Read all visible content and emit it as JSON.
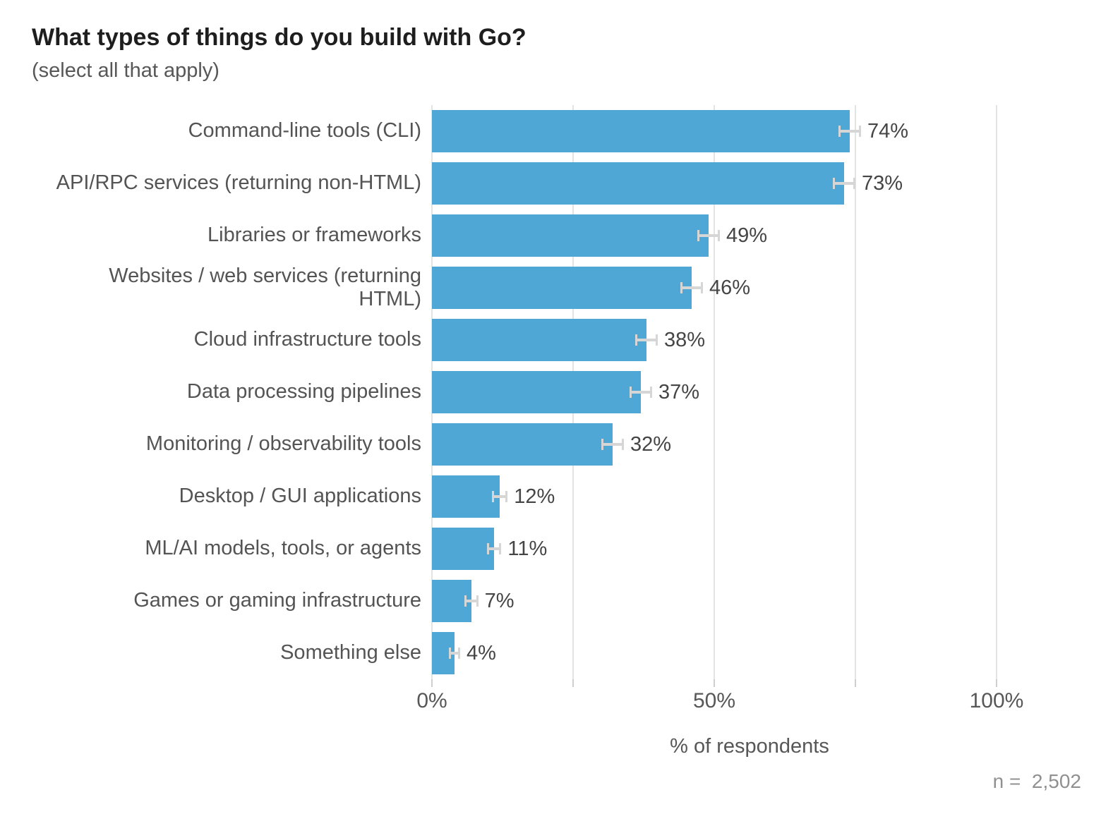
{
  "title": "What types of things do you build with Go?",
  "subtitle": "(select all that apply)",
  "footnote": "n =  2,502",
  "colors": {
    "bar": "#4fa7d5",
    "gridline": "#e4e4e4",
    "error_bar": "#d6d6d6",
    "title_text": "#1e1e1e",
    "label_text": "#545454",
    "footnote_text": "#909090"
  },
  "chart_data": {
    "type": "bar",
    "orientation": "horizontal",
    "title": "What types of things do you build with Go?",
    "subtitle": "(select all that apply)",
    "xlabel": "% of respondents",
    "ylabel": "",
    "xlim": [
      0,
      100
    ],
    "grid": "vertical",
    "sample_size": "2,502",
    "categories": [
      "Command-line tools (CLI)",
      "API/RPC services (returning non-HTML)",
      "Libraries or frameworks",
      "Websites / web services (returning\nHTML)",
      "Cloud infrastructure tools",
      "Data processing pipelines",
      "Monitoring / observability tools",
      "Desktop / GUI applications",
      "ML/AI models, tools, or agents",
      "Games or gaming infrastructure",
      "Something else"
    ],
    "values": [
      74,
      73,
      49,
      46,
      38,
      37,
      32,
      12,
      11,
      7,
      4
    ],
    "value_labels": [
      "74%",
      "73%",
      "49%",
      "46%",
      "38%",
      "37%",
      "32%",
      "12%",
      "11%",
      "7%",
      "4%"
    ],
    "error_margins": [
      2,
      2,
      2,
      2,
      2,
      2,
      2,
      1.4,
      1.3,
      1.2,
      1
    ],
    "x_ticks": [
      {
        "value": 0,
        "label": "0%"
      },
      {
        "value": 25,
        "label": ""
      },
      {
        "value": 50,
        "label": "50%"
      },
      {
        "value": 75,
        "label": ""
      },
      {
        "value": 100,
        "label": "100%"
      }
    ]
  }
}
